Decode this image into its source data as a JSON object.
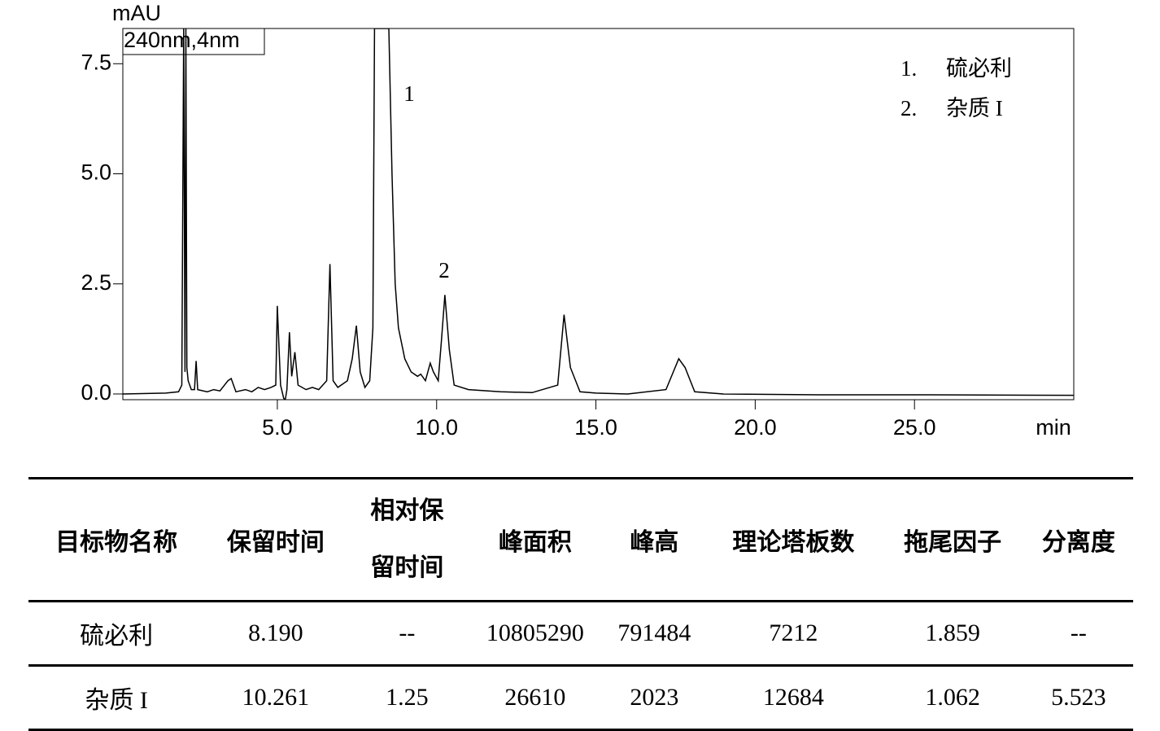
{
  "chart_data": {
    "type": "line",
    "y_label": "mAU",
    "x_label": "min",
    "channel": "240nm,4nm",
    "peak_labels": [
      "1",
      "2"
    ],
    "legend": [
      {
        "number": "1.",
        "name": "硫必利"
      },
      {
        "number": "2.",
        "name": "杂质 I"
      }
    ],
    "color": "#000000",
    "x": [
      0.15,
      1.5,
      1.9,
      2.0,
      2.06,
      2.1,
      2.13,
      2.16,
      2.2,
      2.3,
      2.4,
      2.45,
      2.5,
      2.8,
      3.0,
      3.2,
      3.45,
      3.55,
      3.7,
      4.0,
      4.2,
      4.4,
      4.6,
      4.8,
      4.95,
      5.0,
      5.1,
      5.2,
      5.25,
      5.3,
      5.38,
      5.45,
      5.55,
      5.65,
      5.9,
      6.1,
      6.3,
      6.55,
      6.65,
      6.75,
      6.9,
      7.2,
      7.35,
      7.48,
      7.6,
      7.75,
      7.9,
      8.0,
      8.05,
      8.5,
      8.6,
      8.7,
      8.8,
      9.0,
      9.2,
      9.4,
      9.5,
      9.65,
      9.8,
      9.9,
      10.05,
      10.15,
      10.26,
      10.4,
      10.55,
      11.0,
      12.0,
      13.0,
      13.8,
      14.0,
      14.2,
      14.5,
      15.0,
      16.0,
      17.2,
      17.6,
      17.8,
      18.1,
      19.0,
      22.0,
      25.0,
      30.0
    ],
    "values": [
      0.0,
      0.02,
      0.05,
      0.2,
      8.3,
      0.5,
      8.3,
      0.6,
      0.3,
      0.1,
      0.1,
      0.75,
      0.1,
      0.05,
      0.1,
      0.07,
      0.3,
      0.35,
      0.05,
      0.1,
      0.05,
      0.15,
      0.1,
      0.15,
      0.2,
      2.0,
      0.2,
      -0.1,
      -0.13,
      0.1,
      1.4,
      0.4,
      0.95,
      0.2,
      0.1,
      0.15,
      0.1,
      0.3,
      2.95,
      0.3,
      0.15,
      0.3,
      0.8,
      1.55,
      0.5,
      0.15,
      0.3,
      1.5,
      8.3,
      8.3,
      5.0,
      2.5,
      1.5,
      0.8,
      0.5,
      0.4,
      0.45,
      0.3,
      0.7,
      0.5,
      0.3,
      1.2,
      2.25,
      1.0,
      0.2,
      0.1,
      0.05,
      0.03,
      0.2,
      1.8,
      0.6,
      0.05,
      0.02,
      0.0,
      0.1,
      0.8,
      0.6,
      0.05,
      0.0,
      -0.02,
      -0.02,
      -0.03
    ],
    "xlim": [
      0.15,
      30
    ],
    "ylim": [
      -0.13,
      8.3
    ],
    "xticks": [
      {
        "value": 5,
        "label": "5.0"
      },
      {
        "value": 10,
        "label": "10.0"
      },
      {
        "value": 15,
        "label": "15.0"
      },
      {
        "value": 20,
        "label": "20.0"
      },
      {
        "value": 25,
        "label": "25.0"
      }
    ],
    "yticks": [
      {
        "value": 0,
        "label": "0.0"
      },
      {
        "value": 2.5,
        "label": "2.5"
      },
      {
        "value": 5,
        "label": "5.0"
      },
      {
        "value": 7.5,
        "label": "7.5"
      }
    ]
  },
  "table": {
    "header": [
      "目标物名称",
      "保留时间",
      "相对保留时间",
      "峰面积",
      "峰高",
      "理论塔板数",
      "拖尾因子",
      "分离度"
    ],
    "rows": [
      [
        "硫必利",
        "8.190",
        "--",
        "10805290",
        "791484",
        "7212",
        "1.859",
        "--"
      ],
      [
        "杂质 I",
        "10.261",
        "1.25",
        "26610",
        "2023",
        "12684",
        "1.062",
        "5.523"
      ]
    ]
  }
}
